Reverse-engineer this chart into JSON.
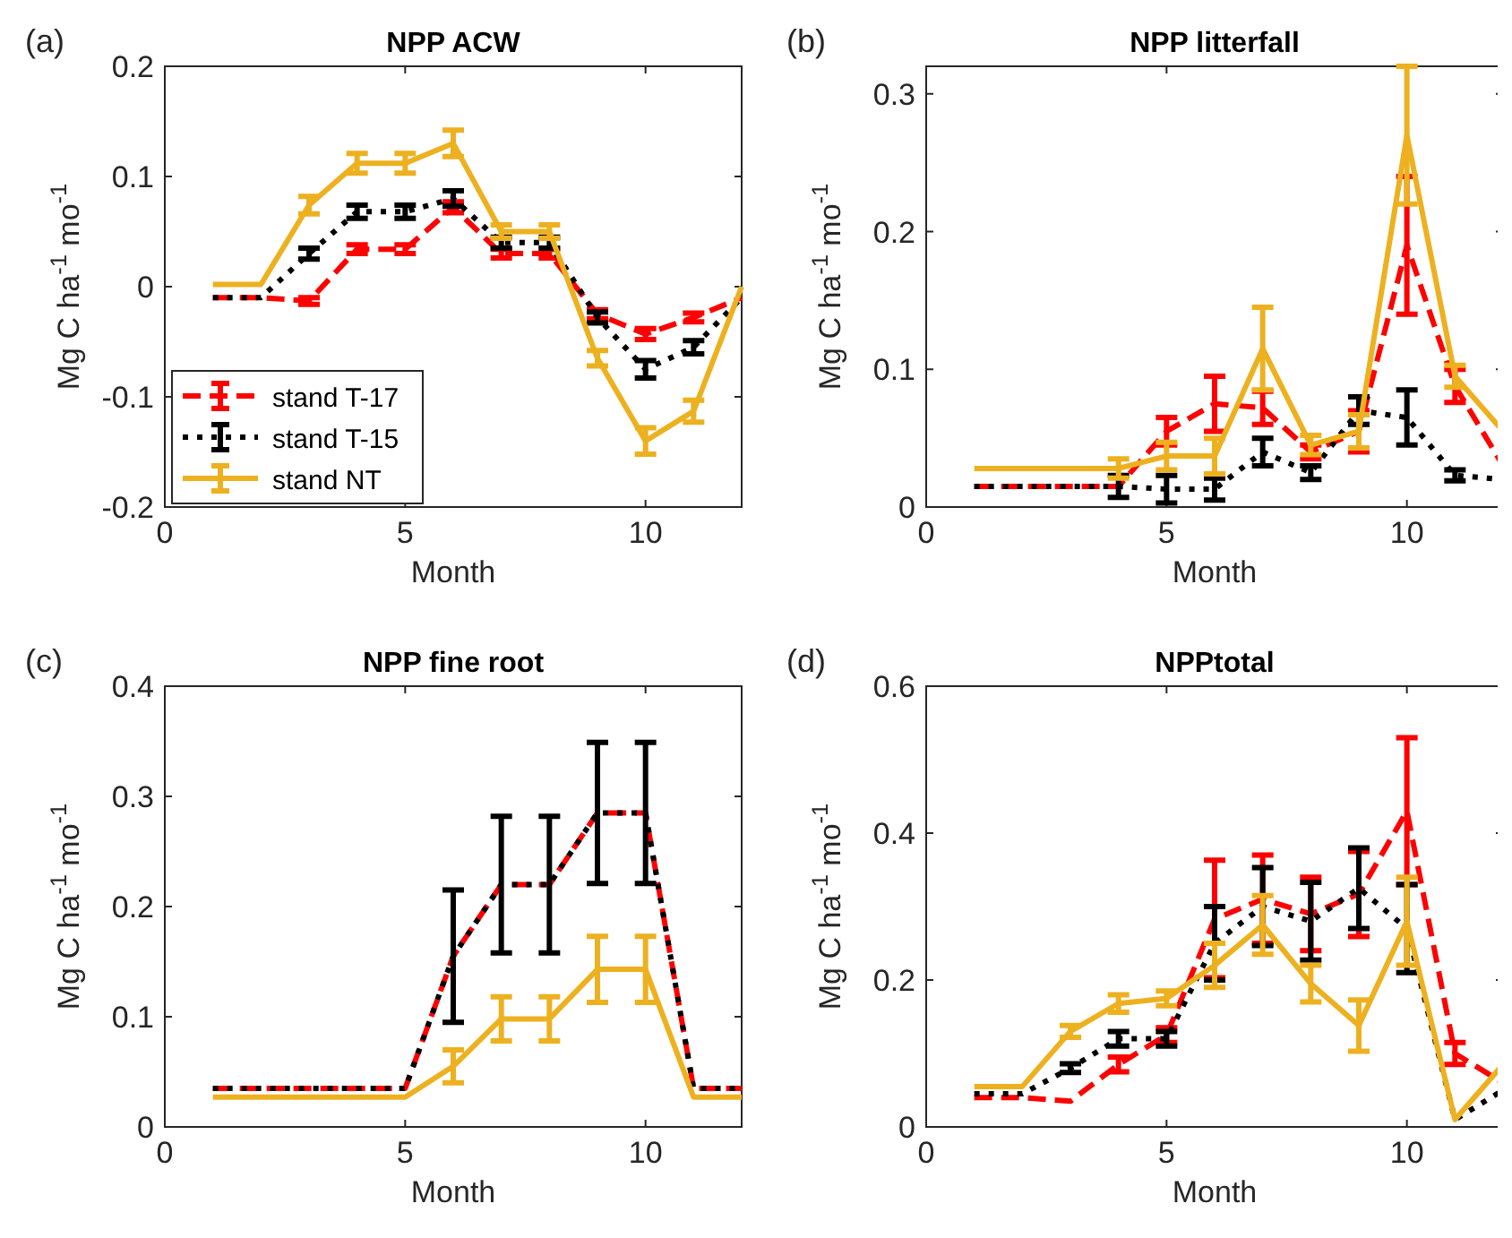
{
  "chart_data": [
    {
      "type": "line",
      "title": "NPP ACW",
      "xlabel": "Month",
      "ylabel": "Mg C ha$^{-1}$ mo$^{-1}$",
      "annotations": [
        "(a)"
      ],
      "x": [
        1,
        2,
        3,
        4,
        5,
        6,
        7,
        8,
        9,
        10,
        11,
        12
      ],
      "xlim": [
        0,
        12
      ],
      "xticks": [
        0,
        5,
        10
      ],
      "ylim": [
        -0.2,
        0.2
      ],
      "yticks": [
        -0.2,
        -0.1,
        0,
        0.1,
        0.2
      ],
      "grid": false,
      "legend": "bottom left",
      "series": [
        {
          "name": "stand T-17",
          "color": "#ff0000",
          "line_style": "dashed",
          "values": [
            -0.01,
            -0.01,
            -0.013,
            0.034,
            0.034,
            0.072,
            0.03,
            0.03,
            -0.025,
            -0.043,
            -0.028,
            -0.01
          ],
          "errors": [
            null,
            null,
            0.003,
            0.004,
            0.004,
            0.005,
            0.004,
            0.004,
            0.004,
            0.005,
            0.004,
            null
          ]
        },
        {
          "name": "stand T-15",
          "color": "#000000",
          "line_style": "dotted",
          "values": [
            -0.01,
            -0.01,
            0.03,
            0.068,
            0.068,
            0.08,
            0.04,
            0.04,
            -0.028,
            -0.075,
            -0.055,
            -0.01
          ],
          "errors": [
            null,
            null,
            0.005,
            0.006,
            0.006,
            0.007,
            0.005,
            0.005,
            0.005,
            0.008,
            0.006,
            null
          ]
        },
        {
          "name": "stand NT",
          "color": "#edb120",
          "line_style": "solid",
          "values": [
            0.002,
            0.002,
            0.074,
            0.112,
            0.112,
            0.13,
            0.05,
            0.05,
            -0.065,
            -0.14,
            -0.113,
            0
          ],
          "errors": [
            null,
            null,
            0.008,
            0.009,
            0.009,
            0.012,
            0.006,
            0.006,
            0.007,
            0.012,
            0.01,
            null
          ]
        }
      ]
    },
    {
      "type": "line",
      "title": "NPP litterfall",
      "xlabel": "Month",
      "ylabel": "Mg C ha$^{-1}$ mo$^{-1}$",
      "annotations": [
        "(b)"
      ],
      "x": [
        1,
        2,
        3,
        4,
        5,
        6,
        7,
        8,
        9,
        10,
        11,
        12
      ],
      "xlim": [
        0,
        12
      ],
      "xticks": [
        0,
        5,
        10
      ],
      "ylim": [
        0,
        0.32
      ],
      "yticks": [
        0,
        0.1,
        0.2,
        0.3
      ],
      "grid": false,
      "legend": false,
      "series": [
        {
          "color": "#ff0000",
          "line_style": "dashed",
          "values": [
            0.015,
            0.015,
            0.015,
            0.015,
            0.055,
            0.075,
            0.072,
            0.04,
            0.055,
            0.19,
            0.088,
            0.03
          ],
          "errors": [
            null,
            null,
            null,
            null,
            0.01,
            0.02,
            0.012,
            0.005,
            0.015,
            0.05,
            0.012,
            null
          ]
        },
        {
          "color": "#000000",
          "line_style": "dotted",
          "values": [
            0.015,
            0.015,
            0.015,
            0.015,
            0.013,
            0.013,
            0.04,
            0.025,
            0.07,
            0.065,
            0.023,
            0.02
          ],
          "errors": [
            null,
            null,
            null,
            0.008,
            0.01,
            0.008,
            0.01,
            0.005,
            0.01,
            0.02,
            0.004,
            null
          ]
        },
        {
          "color": "#edb120",
          "line_style": "solid",
          "values": [
            0.028,
            0.028,
            0.028,
            0.028,
            0.037,
            0.037,
            0.115,
            0.045,
            0.055,
            0.27,
            0.095,
            0.055
          ],
          "errors": [
            null,
            null,
            null,
            0.007,
            0.01,
            0.013,
            0.03,
            0.007,
            0.012,
            0.05,
            0.008,
            null
          ]
        }
      ]
    },
    {
      "type": "line",
      "title": "NPP fine root",
      "xlabel": "Month",
      "ylabel": "Mg C ha$^{-1}$ mo$^{-1}$",
      "annotations": [
        "(c)"
      ],
      "x": [
        1,
        2,
        3,
        4,
        5,
        6,
        7,
        8,
        9,
        10,
        11,
        12
      ],
      "xlim": [
        0,
        12
      ],
      "xticks": [
        0,
        5,
        10
      ],
      "ylim": [
        0,
        0.4
      ],
      "yticks": [
        0,
        0.1,
        0.2,
        0.3,
        0.4
      ],
      "grid": false,
      "legend": false,
      "series": [
        {
          "color": "#ff0000",
          "line_style": "dashed",
          "values": [
            0.035,
            0.035,
            0.035,
            0.035,
            0.035,
            0.155,
            0.22,
            0.22,
            0.285,
            0.285,
            0.035,
            0.035
          ]
        },
        {
          "color": "#000000",
          "line_style": "dotted",
          "values": [
            0.035,
            0.035,
            0.035,
            0.035,
            0.035,
            0.155,
            0.22,
            0.22,
            0.285,
            0.285,
            0.035,
            0.035
          ],
          "errors": [
            null,
            null,
            null,
            null,
            null,
            0.06,
            0.062,
            0.062,
            0.064,
            0.064,
            null,
            null
          ]
        },
        {
          "color": "#edb120",
          "line_style": "solid",
          "values": [
            0.027,
            0.027,
            0.027,
            0.027,
            0.027,
            0.055,
            0.098,
            0.098,
            0.143,
            0.143,
            0.027,
            0.027
          ],
          "errors": [
            null,
            null,
            null,
            null,
            null,
            0.015,
            0.02,
            0.02,
            0.03,
            0.03,
            null,
            null
          ]
        }
      ]
    },
    {
      "type": "line",
      "title": "NPPtotal",
      "xlabel": "Month",
      "ylabel": "Mg C ha$^{-1}$ mo$^{-1}$",
      "annotations": [
        "(d)"
      ],
      "x": [
        1,
        2,
        3,
        4,
        5,
        6,
        7,
        8,
        9,
        10,
        11,
        12
      ],
      "xlim": [
        0,
        12
      ],
      "xticks": [
        0,
        5,
        10
      ],
      "ylim": [
        0,
        0.6
      ],
      "yticks": [
        0,
        0.2,
        0.4,
        0.6
      ],
      "grid": false,
      "legend": false,
      "series": [
        {
          "color": "#ff0000",
          "line_style": "dashed",
          "values": [
            0.04,
            0.04,
            0.035,
            0.085,
            0.125,
            0.283,
            0.31,
            0.29,
            0.317,
            0.43,
            0.1,
            0.06
          ],
          "errors": [
            null,
            null,
            null,
            0.01,
            0.01,
            0.08,
            0.06,
            0.05,
            0.058,
            0.1,
            0.015,
            null
          ]
        },
        {
          "color": "#000000",
          "line_style": "dotted",
          "values": [
            0.045,
            0.045,
            0.08,
            0.12,
            0.12,
            0.25,
            0.3,
            0.28,
            0.325,
            0.27,
            0.01,
            0.05
          ],
          "errors": [
            null,
            null,
            0.006,
            0.01,
            0.01,
            0.05,
            0.053,
            0.053,
            0.055,
            0.06,
            null,
            null
          ]
        },
        {
          "color": "#edb120",
          "line_style": "solid",
          "values": [
            0.055,
            0.055,
            0.13,
            0.168,
            0.175,
            0.22,
            0.275,
            0.195,
            0.138,
            0.28,
            0.01,
            0.085
          ],
          "errors": [
            null,
            null,
            0.008,
            0.012,
            0.01,
            0.03,
            0.04,
            0.025,
            0.035,
            0.06,
            null,
            null
          ]
        }
      ]
    }
  ]
}
